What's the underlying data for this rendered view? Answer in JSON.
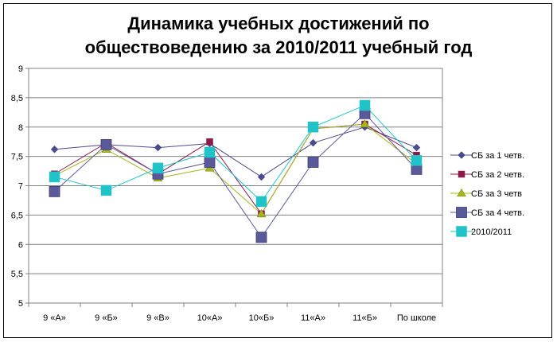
{
  "chart_data": {
    "type": "line",
    "title_line1": "Динамика учебных достижений по",
    "title_line2": "обществоведению за 2010/2011 учебный год",
    "categories": [
      "9 «А»",
      "9 «Б»",
      "9 «В»",
      "10«А»",
      "10«Б»",
      "11«А»",
      "11«Б»",
      "По школе"
    ],
    "ylim": [
      5,
      9
    ],
    "yticks": [
      "5",
      "5,5",
      "6",
      "6,5",
      "7",
      "7,5",
      "8",
      "8,5",
      "9"
    ],
    "grid": true,
    "legend_position": "right",
    "series": [
      {
        "name": "СБ за 1 четв.",
        "color": "#4B4B8F",
        "marker": "diamond",
        "values": [
          7.62,
          7.7,
          7.65,
          7.72,
          7.15,
          7.73,
          8.0,
          7.65
        ]
      },
      {
        "name": "СБ за 2 четв.",
        "color": "#8B1A4A",
        "marker": "square-small",
        "values": [
          7.2,
          7.73,
          7.2,
          7.75,
          6.52,
          7.97,
          8.05,
          7.52
        ]
      },
      {
        "name": "СБ  за  3  четв",
        "color": "#A8B61E",
        "marker": "triangle",
        "values": [
          7.17,
          7.62,
          7.13,
          7.3,
          6.52,
          7.97,
          8.05,
          7.37
        ]
      },
      {
        "name": "СБ за 4 четв.",
        "color": "#5A5A9A",
        "marker": "square-large",
        "values": [
          6.9,
          7.7,
          7.2,
          7.4,
          6.12,
          7.4,
          8.23,
          7.28
        ]
      },
      {
        "name": "2010/2011",
        "color": "#20C4C8",
        "marker": "square-cyan",
        "values": [
          7.15,
          6.92,
          7.3,
          7.57,
          6.73,
          8.0,
          8.37,
          7.43
        ]
      }
    ]
  }
}
